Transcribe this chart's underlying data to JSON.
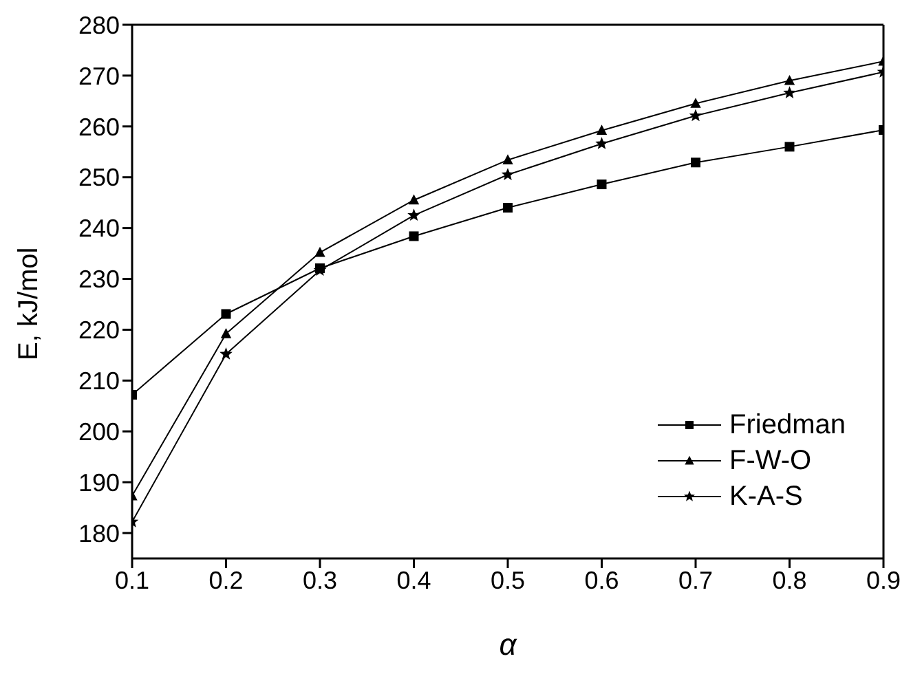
{
  "chart_data": {
    "type": "line",
    "xlabel": "α",
    "ylabel": "E, kJ/mol",
    "x": [
      0.1,
      0.2,
      0.3,
      0.4,
      0.5,
      0.6,
      0.7,
      0.8,
      0.9
    ],
    "series": [
      {
        "name": "Friedman",
        "color": "#000000",
        "marker": "square",
        "values": [
          207.2,
          223.1,
          232.1,
          238.4,
          244.0,
          248.6,
          252.9,
          256.0,
          259.3
        ]
      },
      {
        "name": "F-W-O",
        "color": "#000000",
        "marker": "triangle",
        "values": [
          187.3,
          219.2,
          235.2,
          245.5,
          253.4,
          259.2,
          264.5,
          269.0,
          272.8
        ]
      },
      {
        "name": "K-A-S",
        "color": "#000000",
        "marker": "star",
        "values": [
          182.2,
          215.2,
          231.7,
          242.5,
          250.5,
          256.6,
          262.1,
          266.6,
          270.7
        ]
      }
    ],
    "xlim": [
      0.1,
      0.9
    ],
    "xticks": [
      0.1,
      0.2,
      0.3,
      0.4,
      0.5,
      0.6,
      0.7,
      0.8,
      0.9
    ],
    "ylim": [
      175,
      280
    ],
    "yticks": [
      180,
      190,
      200,
      210,
      220,
      230,
      240,
      250,
      260,
      270,
      280
    ],
    "grid": false,
    "legend": "bottom right",
    "line_style": "solid"
  }
}
